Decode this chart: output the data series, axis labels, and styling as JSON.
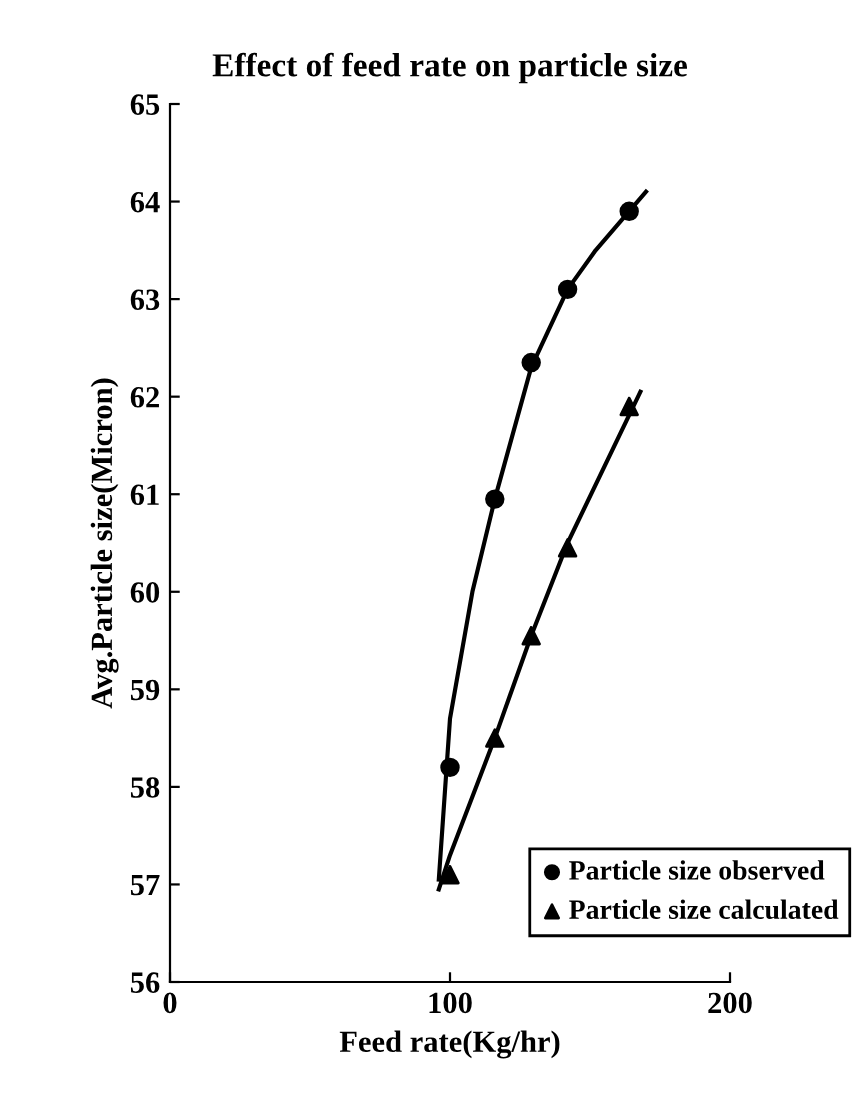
{
  "chart_data": {
    "type": "scatter",
    "title": "Effect of feed rate on particle size",
    "xlabel": "Feed rate(Kg/hr)",
    "ylabel": "Avg.Particle size(Micron)",
    "xlim": [
      0,
      200
    ],
    "xticks": [
      0,
      100,
      200
    ],
    "ylim": [
      56,
      65
    ],
    "yticks": [
      56,
      57,
      58,
      59,
      60,
      61,
      62,
      63,
      64,
      65
    ],
    "grid": false,
    "legend": "bottom right",
    "series": [
      {
        "name": "Particle size observed",
        "color": "#000000",
        "marker": "circle",
        "x": [
          100,
          116,
          129,
          142,
          164
        ],
        "values": [
          58.2,
          60.95,
          62.35,
          63.1,
          63.9
        ]
      },
      {
        "name": "Particle size calculated",
        "color": "#000000",
        "marker": "triangle",
        "x": [
          100,
          116,
          129,
          142,
          164
        ],
        "values": [
          57.1,
          58.5,
          59.55,
          60.45,
          61.9
        ]
      },
      {
        "type": "line",
        "color": "#000000",
        "marker": "none",
        "line_style": "solid",
        "x": [
          96,
          100,
          108,
          116,
          129,
          142,
          152,
          170
        ],
        "values": [
          57.05,
          58.7,
          60.0,
          60.95,
          62.3,
          63.1,
          63.5,
          64.1
        ]
      },
      {
        "type": "line",
        "color": "#000000",
        "marker": "none",
        "line_style": "solid",
        "x": [
          96,
          100,
          116,
          129,
          142,
          168
        ],
        "values": [
          56.95,
          57.3,
          58.5,
          59.55,
          60.5,
          62.05
        ]
      }
    ]
  }
}
